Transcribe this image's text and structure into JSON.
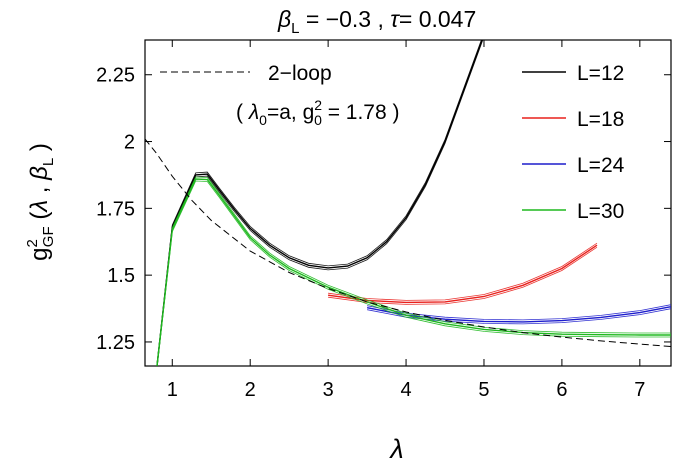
{
  "chart_data": {
    "type": "line",
    "title": {
      "beta_sym": "β",
      "beta_sub": "L",
      "beta_val": " = −0.3 , ",
      "tau_sym": "τ",
      "tau_val": "= 0.047"
    },
    "xlabel": "λ",
    "ylabel": {
      "g": "g",
      "sup": "2",
      "sub": "GF",
      "open": " (",
      "lam": "λ",
      "comma": " , ",
      "beta": "β",
      "bsub": "L",
      "close": " )"
    },
    "xlim": [
      0.65,
      7.4
    ],
    "ylim": [
      1.16,
      2.38
    ],
    "x_ticks": [
      1,
      2,
      3,
      4,
      5,
      6,
      7
    ],
    "x_tick_labels": [
      "1",
      "2",
      "3",
      "4",
      "5",
      "6",
      "7"
    ],
    "y_ticks": [
      1.25,
      1.5,
      1.75,
      2,
      2.25
    ],
    "y_tick_labels": [
      "1.25",
      "1.5",
      "1.75",
      "2",
      "2.25"
    ],
    "grid": false,
    "legend": {
      "placement": "top-right",
      "entries": [
        {
          "label": "L=12",
          "color": "#000000"
        },
        {
          "label": "L=18",
          "color": "#e8201c"
        },
        {
          "label": "L=24",
          "color": "#1d1dcc"
        },
        {
          "label": "L=30",
          "color": "#1fb81f"
        }
      ]
    },
    "annotation": {
      "loop_label": "2−loop",
      "paren_open": "( ",
      "lam": "λ",
      "lam_sub": "0",
      "lam_eq": "=a,  g",
      "g_sup": "2",
      "g_sub": "0",
      "g_val": " = 1.78 )"
    },
    "series": [
      {
        "name": "L=12",
        "color": "#000000",
        "band": true,
        "points": [
          [
            0.8,
            1.15
          ],
          [
            1.0,
            1.68
          ],
          [
            1.3,
            1.875
          ],
          [
            1.45,
            1.878
          ],
          [
            1.6,
            1.82
          ],
          [
            1.8,
            1.745
          ],
          [
            2.0,
            1.675
          ],
          [
            2.25,
            1.612
          ],
          [
            2.5,
            1.565
          ],
          [
            2.75,
            1.537
          ],
          [
            3.0,
            1.527
          ],
          [
            3.25,
            1.534
          ],
          [
            3.5,
            1.565
          ],
          [
            3.75,
            1.625
          ],
          [
            4.0,
            1.715
          ],
          [
            4.25,
            1.84
          ],
          [
            4.5,
            2.0
          ],
          [
            4.7,
            2.16
          ],
          [
            4.85,
            2.28
          ],
          [
            5.0,
            2.4
          ]
        ]
      },
      {
        "name": "L=18",
        "color": "#e8201c",
        "band": true,
        "points": [
          [
            3.0,
            1.425
          ],
          [
            3.5,
            1.405
          ],
          [
            4.0,
            1.398
          ],
          [
            4.5,
            1.4
          ],
          [
            5.0,
            1.42
          ],
          [
            5.5,
            1.462
          ],
          [
            6.0,
            1.525
          ],
          [
            6.45,
            1.612
          ]
        ]
      },
      {
        "name": "L=24",
        "color": "#1d1dcc",
        "band": true,
        "points": [
          [
            3.5,
            1.378
          ],
          [
            4.0,
            1.35
          ],
          [
            4.5,
            1.335
          ],
          [
            5.0,
            1.327
          ],
          [
            5.5,
            1.325
          ],
          [
            6.0,
            1.33
          ],
          [
            6.5,
            1.342
          ],
          [
            7.0,
            1.36
          ],
          [
            7.4,
            1.382
          ]
        ]
      },
      {
        "name": "L=30",
        "color": "#1fb81f",
        "band": true,
        "points": [
          [
            0.8,
            1.15
          ],
          [
            1.0,
            1.67
          ],
          [
            1.3,
            1.86
          ],
          [
            1.45,
            1.858
          ],
          [
            1.6,
            1.8
          ],
          [
            1.8,
            1.72
          ],
          [
            2.0,
            1.64
          ],
          [
            2.25,
            1.575
          ],
          [
            2.5,
            1.525
          ],
          [
            3.0,
            1.455
          ],
          [
            3.5,
            1.4
          ],
          [
            4.0,
            1.35
          ],
          [
            4.5,
            1.318
          ],
          [
            5.0,
            1.297
          ],
          [
            5.5,
            1.285
          ],
          [
            6.0,
            1.279
          ],
          [
            6.5,
            1.277
          ],
          [
            7.0,
            1.276
          ],
          [
            7.4,
            1.276
          ]
        ]
      },
      {
        "name": "2-loop",
        "color": "#000000",
        "dashed": true,
        "points": [
          [
            0.65,
            2.01
          ],
          [
            0.8,
            1.955
          ],
          [
            1.0,
            1.87
          ],
          [
            1.25,
            1.78
          ],
          [
            1.5,
            1.705
          ],
          [
            2.0,
            1.59
          ],
          [
            2.5,
            1.51
          ],
          [
            3.0,
            1.45
          ],
          [
            3.5,
            1.4
          ],
          [
            4.0,
            1.362
          ],
          [
            4.5,
            1.331
          ],
          [
            5.0,
            1.306
          ],
          [
            5.5,
            1.285
          ],
          [
            6.0,
            1.268
          ],
          [
            6.5,
            1.254
          ],
          [
            7.0,
            1.242
          ],
          [
            7.4,
            1.233
          ]
        ]
      }
    ]
  }
}
